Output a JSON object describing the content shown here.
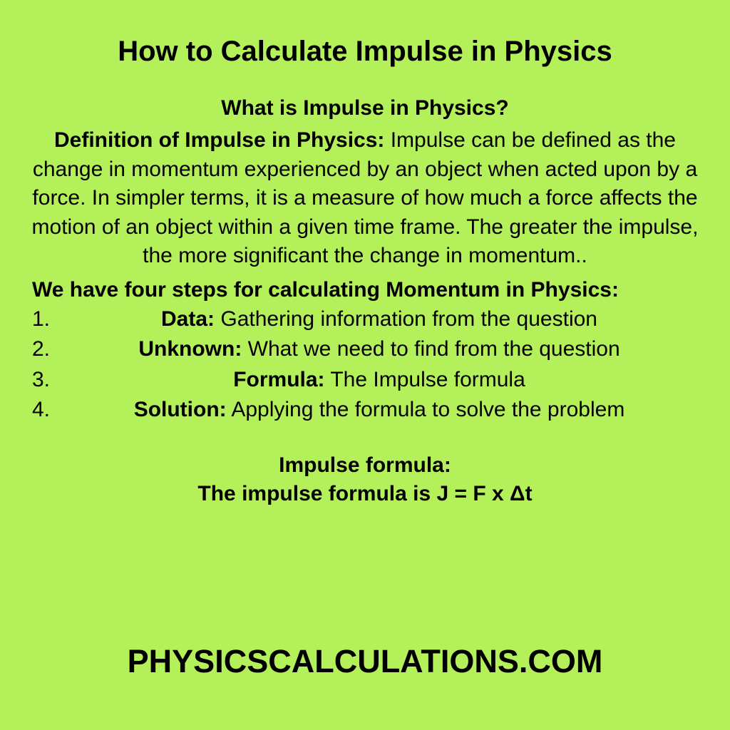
{
  "colors": {
    "background": "#b4f05a",
    "text": "#000000"
  },
  "typography": {
    "font_family": "Arial, Helvetica, sans-serif",
    "title_size": 40,
    "body_size": 30,
    "footer_size": 45
  },
  "title": "How to Calculate Impulse in Physics",
  "subtitle": "What is Impulse in Physics?",
  "definition": {
    "label": "Definition of Impulse in Physics:",
    "text": " Impulse can be defined as the change in momentum experienced by an object when acted upon by a force. In simpler terms, it is a measure of how much a force affects the motion of an object within a given time frame. The greater the impulse, the more significant the change in momentum.."
  },
  "steps_heading": "We have four steps for calculating  Momentum in Physics:",
  "steps": [
    {
      "number": "1.",
      "label": "Data:",
      "text": " Gathering information from the question"
    },
    {
      "number": "2.",
      "label": "Unknown:",
      "text": " What we need to find from the question"
    },
    {
      "number": "3.",
      "label": "Formula:",
      "text": " The Impulse formula"
    },
    {
      "number": "4.",
      "label": "Solution:",
      "text": " Applying the formula to solve the problem"
    }
  ],
  "formula": {
    "heading": "Impulse formula:",
    "text": "The impulse formula is J = F x Δt"
  },
  "footer": "PHYSICSCALCULATIONS.COM"
}
